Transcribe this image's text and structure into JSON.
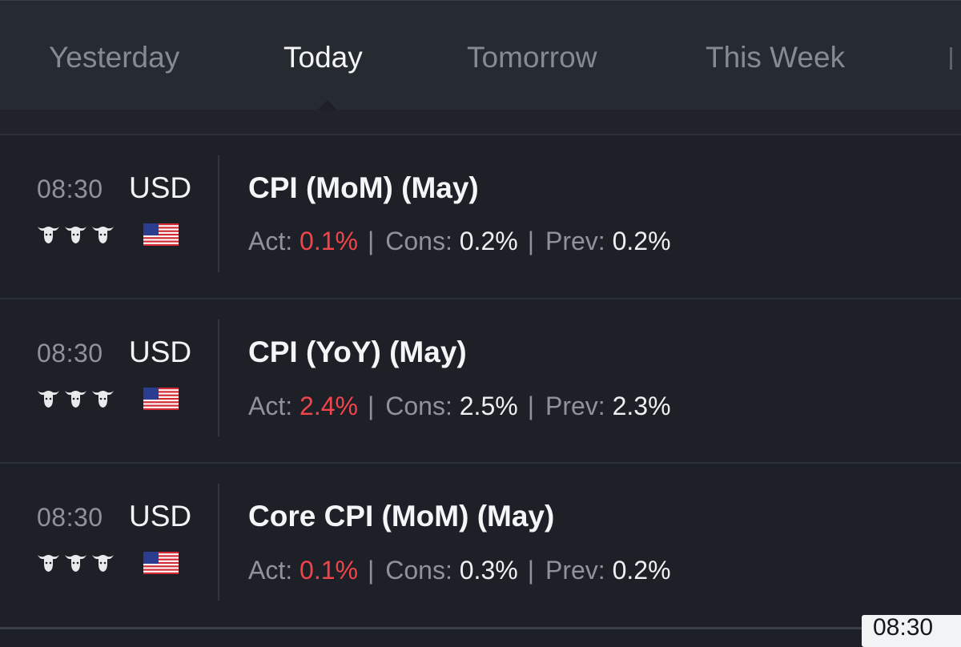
{
  "tabs": [
    {
      "label": "Yesterday",
      "active": false
    },
    {
      "label": "Today",
      "active": true
    },
    {
      "label": "Tomorrow",
      "active": false
    },
    {
      "label": "This Week",
      "active": false
    }
  ],
  "events": [
    {
      "time": "08:30",
      "currency": "USD",
      "importance": 3,
      "title": "CPI (MoM) (May)",
      "act_label": "Act:",
      "act": "0.1%",
      "cons_label": "Cons:",
      "cons": "0.2%",
      "prev_label": "Prev:",
      "prev": "0.2%"
    },
    {
      "time": "08:30",
      "currency": "USD",
      "importance": 3,
      "title": "CPI (YoY) (May)",
      "act_label": "Act:",
      "act": "2.4%",
      "cons_label": "Cons:",
      "cons": "2.5%",
      "prev_label": "Prev:",
      "prev": "2.3%"
    },
    {
      "time": "08:30",
      "currency": "USD",
      "importance": 3,
      "title": "Core CPI (MoM) (May)",
      "act_label": "Act:",
      "act": "0.1%",
      "cons_label": "Cons:",
      "cons": "0.3%",
      "prev_label": "Prev:",
      "prev": "0.2%"
    }
  ],
  "time_badge": "08:30",
  "icons": {
    "importance": "bull-icon",
    "flag": "us-flag-icon"
  },
  "colors": {
    "actual_negative": "#f0454b",
    "background": "#1d2026",
    "tabbar": "#262a31"
  }
}
